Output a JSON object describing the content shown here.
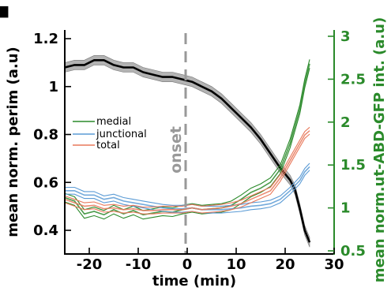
{
  "chart_data": {
    "type": "line",
    "panel_marker": "■",
    "xlabel": "time (min)",
    "ylabel_left": "mean norm. perim (a.u)",
    "ylabel_right": "mean norm.ut-ABD-GFP int. (a.u)",
    "xlim": [
      -25,
      30
    ],
    "ylim_left": [
      0.32,
      1.2
    ],
    "ylim_right": [
      0.5,
      3
    ],
    "xticks": [
      -20,
      -10,
      0,
      10,
      20,
      30
    ],
    "xtick_labels": [
      "-20",
      "-10",
      "0",
      "10",
      "20",
      "30"
    ],
    "yticks_left": [
      0.4,
      0.6,
      0.8,
      1.0,
      1.2
    ],
    "ytick_labels_left": [
      "0.4",
      "0.6",
      "0.8",
      "1",
      "1.2"
    ],
    "yticks_right": [
      0.5,
      1,
      1.5,
      2,
      2.5,
      3
    ],
    "ytick_labels_right": [
      "0.5",
      "1",
      "1.5",
      "2",
      "2.5",
      "3"
    ],
    "onset": {
      "x": 0,
      "label": "onset"
    },
    "legend": {
      "position": "upper-left",
      "entries": [
        "medial",
        "junctional",
        "total"
      ]
    },
    "colors": {
      "perimeter": "#000000",
      "perimeter_band": "#b3b3b3",
      "medial": "#2a8a2a",
      "junctional": "#5b9bd5",
      "total": "#e8785a",
      "right_axis": "#2a8a2a",
      "onset_line": "#999999"
    },
    "series": [
      {
        "axis": "left",
        "color_key": "perimeter",
        "band": 0.02,
        "x": [
          -25,
          -23,
          -21,
          -19,
          -17,
          -15,
          -13,
          -11,
          -9,
          -7,
          -5,
          -3,
          -1,
          1,
          3,
          5,
          7,
          9,
          11,
          13,
          15,
          17,
          19,
          21,
          22,
          23,
          24,
          25
        ],
        "values": [
          1.08,
          1.09,
          1.09,
          1.11,
          1.11,
          1.09,
          1.08,
          1.08,
          1.06,
          1.05,
          1.04,
          1.04,
          1.03,
          1.02,
          1.0,
          0.98,
          0.95,
          0.91,
          0.87,
          0.83,
          0.78,
          0.72,
          0.66,
          0.61,
          0.57,
          0.49,
          0.4,
          0.35
        ]
      },
      {
        "name": "medial",
        "axis": "right",
        "color_key": "medial",
        "band": 0.05,
        "x": [
          -25,
          -23,
          -21,
          -19,
          -17,
          -15,
          -13,
          -11,
          -9,
          -7,
          -5,
          -3,
          -1,
          1,
          3,
          5,
          7,
          9,
          11,
          13,
          15,
          17,
          19,
          21,
          23,
          24,
          25
        ],
        "values": [
          1.12,
          1.08,
          0.93,
          0.96,
          0.92,
          0.98,
          0.93,
          0.97,
          0.92,
          0.94,
          0.96,
          0.95,
          0.98,
          1.0,
          0.98,
          0.99,
          1.0,
          1.03,
          1.1,
          1.18,
          1.23,
          1.3,
          1.45,
          1.75,
          2.15,
          2.45,
          2.68
        ]
      },
      {
        "name": "junctional",
        "axis": "right",
        "color_key": "junctional",
        "band": 0.04,
        "x": [
          -25,
          -23,
          -21,
          -19,
          -17,
          -15,
          -13,
          -11,
          -9,
          -7,
          -5,
          -3,
          -1,
          1,
          3,
          5,
          7,
          9,
          11,
          13,
          15,
          17,
          19,
          21,
          23,
          24,
          25
        ],
        "values": [
          1.2,
          1.2,
          1.15,
          1.15,
          1.1,
          1.12,
          1.08,
          1.06,
          1.04,
          1.02,
          1.0,
          0.99,
          0.99,
          1.0,
          0.98,
          0.98,
          0.98,
          0.99,
          1.0,
          1.02,
          1.03,
          1.05,
          1.1,
          1.2,
          1.32,
          1.42,
          1.48
        ]
      },
      {
        "name": "total",
        "axis": "right",
        "color_key": "total",
        "band": 0.04,
        "x": [
          -25,
          -23,
          -21,
          -19,
          -17,
          -15,
          -13,
          -11,
          -9,
          -7,
          -5,
          -3,
          -1,
          1,
          3,
          5,
          7,
          9,
          11,
          13,
          15,
          17,
          19,
          21,
          23,
          24,
          25
        ],
        "values": [
          1.1,
          1.06,
          1.02,
          1.03,
          0.99,
          1.0,
          0.98,
          0.99,
          0.97,
          0.97,
          0.98,
          0.98,
          0.98,
          1.0,
          0.98,
          0.99,
          1.0,
          1.02,
          1.05,
          1.1,
          1.15,
          1.2,
          1.35,
          1.55,
          1.75,
          1.85,
          1.9
        ]
      }
    ]
  }
}
